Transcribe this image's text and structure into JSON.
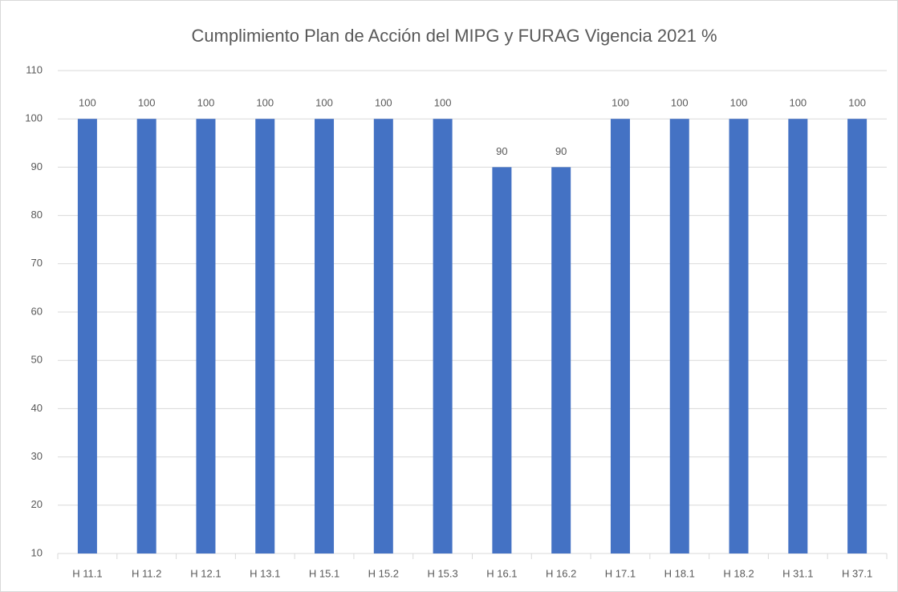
{
  "chart_data": {
    "type": "bar",
    "title": "Cumplimiento Plan de Acción del MIPG y FURAG Vigencia 2021 %",
    "categories": [
      "H 11.1",
      "H 11.2",
      "H 12.1",
      "H 13.1",
      "H 15.1",
      "H 15.2",
      "H 15.3",
      "H 16.1",
      "H 16.2",
      "H 17.1",
      "H 18.1",
      "H 18.2",
      "H 31.1",
      "H 37.1"
    ],
    "values": [
      100,
      100,
      100,
      100,
      100,
      100,
      100,
      90,
      90,
      100,
      100,
      100,
      100,
      100
    ],
    "color": "#4472c4",
    "ylim": [
      10,
      110
    ],
    "yticks": [
      10,
      20,
      30,
      40,
      50,
      60,
      70,
      80,
      90,
      100,
      110
    ],
    "grid": true
  }
}
